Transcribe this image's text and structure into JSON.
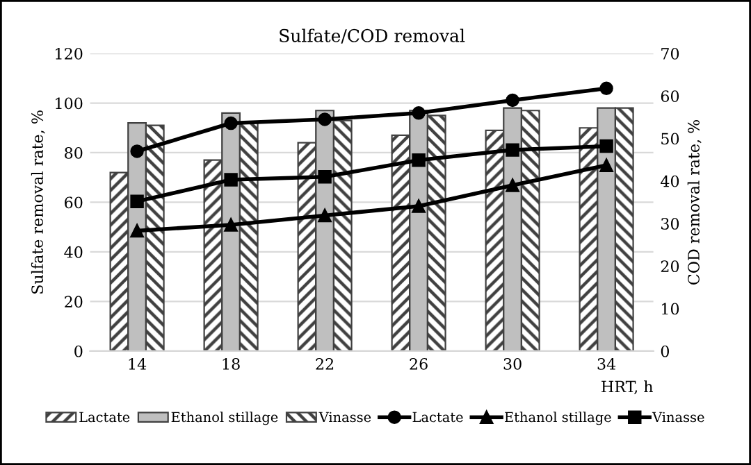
{
  "chart_data": {
    "type": "bar",
    "title": "Sulfate/COD removal",
    "xlabel": "HRT, h",
    "ylabel": "Sulfate removal rate, %",
    "y2label": "COD removal rate, %",
    "categories": [
      "14",
      "18",
      "22",
      "26",
      "30",
      "34"
    ],
    "series": [
      {
        "name": "Lactate",
        "color": "#404040",
        "values": [
          72,
          77,
          84,
          87,
          89,
          90
        ]
      },
      {
        "name": "Ethanol stillage",
        "color": "#bfbfbf",
        "values": [
          92,
          96,
          97,
          97,
          98,
          98
        ]
      },
      {
        "name": "Vinasse",
        "color": "#404040",
        "values": [
          91,
          92,
          93,
          95,
          97,
          98
        ]
      },
      {
        "name": "Lactate",
        "type": "line",
        "axis": "y2",
        "marker": "circle",
        "color": "#000000",
        "values": [
          47,
          53.6,
          54.5,
          56,
          59,
          61.8
        ]
      },
      {
        "name": "Ethanol stillage",
        "type": "line",
        "axis": "y2",
        "marker": "triangle",
        "color": "#000000",
        "values": [
          28.3,
          29.7,
          31.9,
          34.1,
          39,
          43.7
        ]
      },
      {
        "name": "Vinasse",
        "type": "line",
        "axis": "y2",
        "marker": "square",
        "color": "#000000",
        "values": [
          35.2,
          40.3,
          41,
          44.9,
          47.3,
          48.2
        ]
      }
    ],
    "ylim": [
      0,
      120
    ],
    "yticks": [
      0,
      20,
      40,
      60,
      80,
      100,
      120
    ],
    "y2lim": [
      0,
      70
    ],
    "y2ticks": [
      0,
      10,
      20,
      30,
      40,
      50,
      60,
      70
    ],
    "grid": "y",
    "legend": "bottom"
  }
}
